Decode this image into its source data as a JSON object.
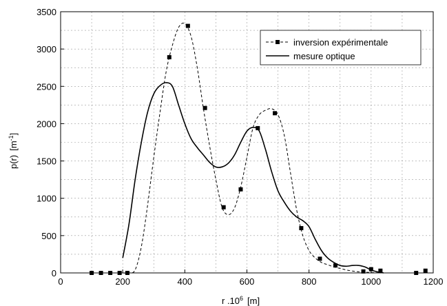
{
  "chart_data": {
    "type": "line",
    "title": "",
    "xlabel": {
      "base": "r .10",
      "sup": "6",
      "unit": "[m]"
    },
    "ylabel": {
      "base": "p(r)",
      "unit_base": "[m",
      "unit_sup": "-1",
      "unit_end": "]"
    },
    "xlim": [
      0,
      1200
    ],
    "ylim": [
      0,
      3500
    ],
    "xticks": [
      0,
      200,
      400,
      600,
      800,
      1000,
      1200
    ],
    "yticks": [
      0,
      500,
      1000,
      1500,
      2000,
      2500,
      3000,
      3500
    ],
    "grid": true,
    "legend_position": "top-right",
    "series": [
      {
        "name": "inversion expérimentale",
        "style": "dashed-with-square-markers",
        "color": "#000000",
        "markers": {
          "x": [
            100,
            130,
            160,
            190,
            215,
            350,
            410,
            465,
            525,
            580,
            635,
            690,
            775,
            835,
            885,
            975,
            1000,
            1030,
            1145,
            1175
          ],
          "y": [
            0,
            0,
            0,
            0,
            0,
            2890,
            3310,
            2210,
            880,
            1120,
            1940,
            2140,
            600,
            190,
            100,
            20,
            50,
            30,
            0,
            30
          ]
        },
        "curve": {
          "x": [
            200,
            220,
            240,
            260,
            280,
            300,
            320,
            340,
            360,
            380,
            400,
            420,
            440,
            460,
            480,
            500,
            520,
            540,
            560,
            580,
            600,
            620,
            640,
            660,
            680,
            700,
            720,
            740,
            760,
            780,
            800,
            820,
            840,
            860,
            880,
            900,
            920,
            940,
            960,
            980,
            1000,
            1020,
            1040
          ],
          "y": [
            0,
            0,
            40,
            350,
            900,
            1550,
            2150,
            2700,
            3050,
            3290,
            3340,
            3170,
            2750,
            2200,
            1700,
            1250,
            880,
            780,
            870,
            1150,
            1550,
            1950,
            2120,
            2180,
            2200,
            2120,
            1850,
            1350,
            850,
            500,
            300,
            200,
            140,
            110,
            80,
            60,
            40,
            25,
            15,
            10,
            5,
            2,
            0
          ]
        }
      },
      {
        "name": "mesure optique",
        "style": "solid",
        "color": "#000000",
        "curve": {
          "x": [
            200,
            220,
            240,
            260,
            280,
            300,
            320,
            340,
            360,
            380,
            400,
            420,
            440,
            460,
            480,
            500,
            520,
            540,
            560,
            580,
            600,
            620,
            640,
            660,
            680,
            700,
            720,
            740,
            760,
            780,
            800,
            820,
            840,
            860,
            880,
            900,
            920,
            940,
            960,
            980,
            1000,
            1020,
            1040
          ],
          "y": [
            200,
            650,
            1250,
            1750,
            2150,
            2400,
            2510,
            2550,
            2500,
            2250,
            2000,
            1800,
            1680,
            1580,
            1480,
            1420,
            1420,
            1470,
            1580,
            1750,
            1900,
            1950,
            1900,
            1650,
            1350,
            1100,
            950,
            830,
            750,
            700,
            620,
            450,
            300,
            200,
            140,
            100,
            90,
            100,
            100,
            80,
            40,
            15,
            0
          ]
        }
      }
    ]
  }
}
